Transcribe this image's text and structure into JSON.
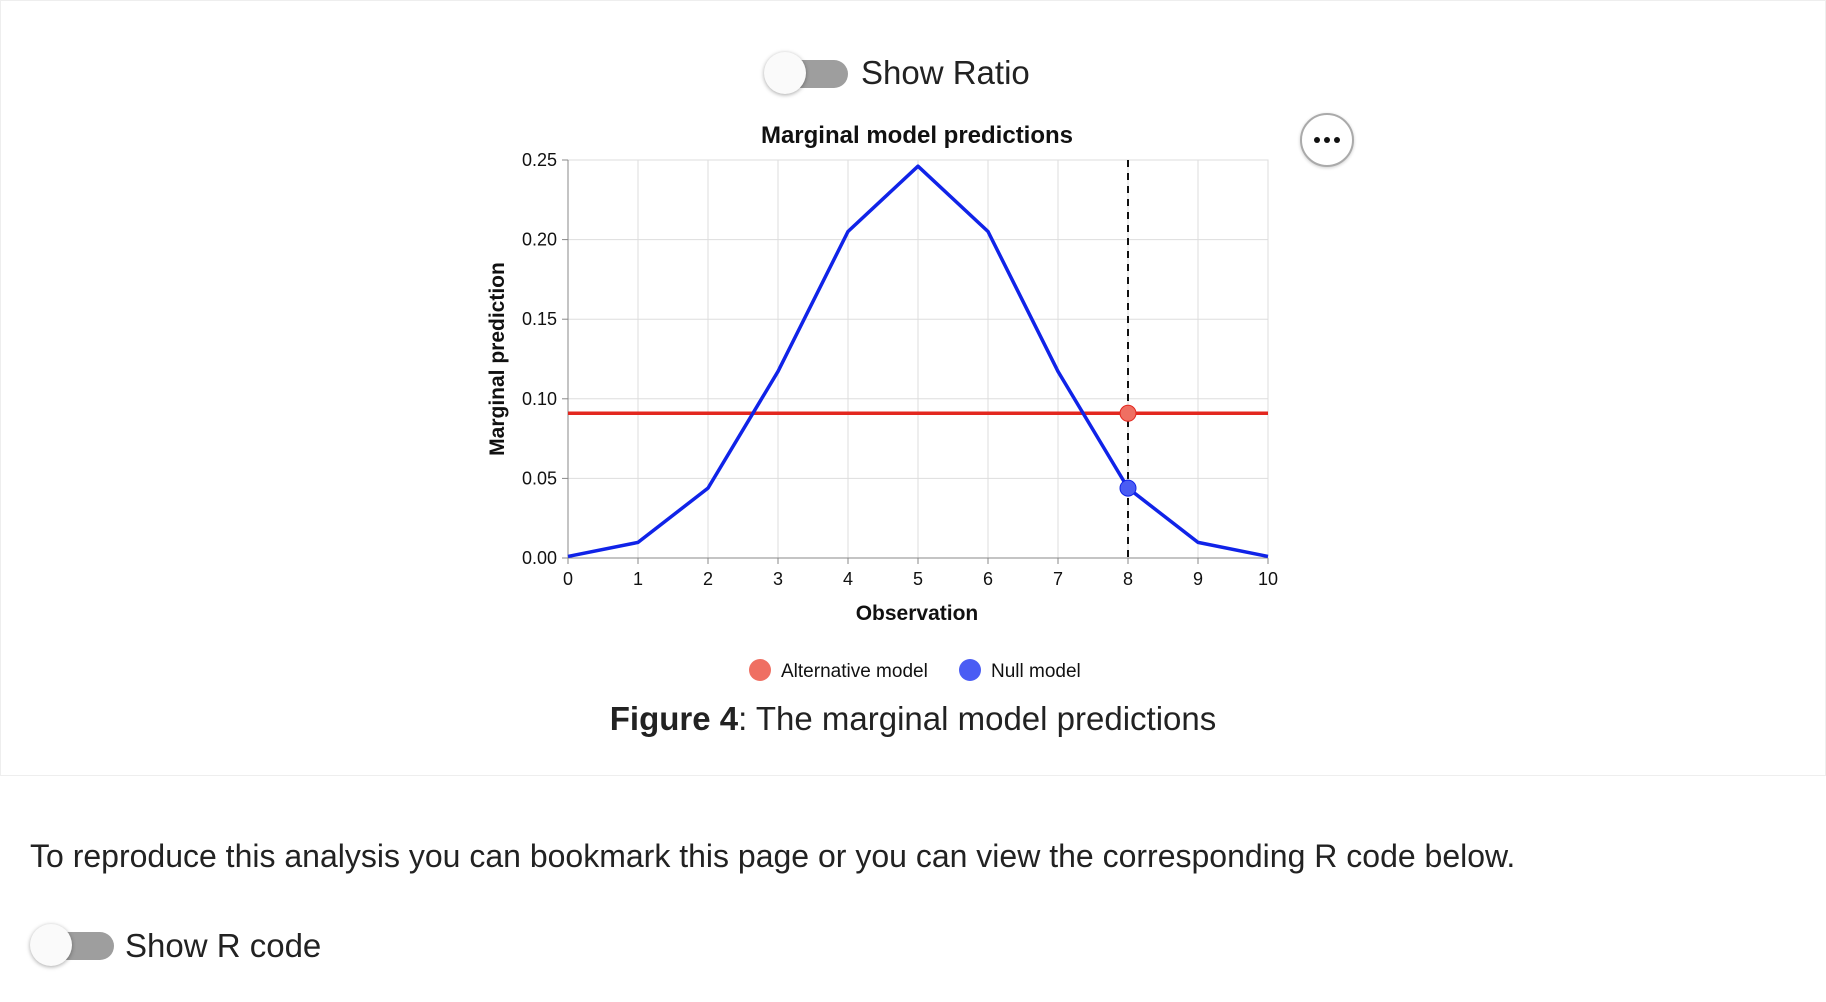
{
  "toggles": {
    "show_ratio_label": "Show Ratio",
    "show_r_code_label": "Show R code"
  },
  "chart_data": {
    "type": "line",
    "title": "Marginal model predictions",
    "xlabel": "Observation",
    "ylabel": "Marginal prediction",
    "xlim": [
      0,
      10
    ],
    "ylim": [
      0,
      0.25
    ],
    "x_ticks": [
      "0",
      "1",
      "2",
      "3",
      "4",
      "5",
      "6",
      "7",
      "8",
      "9",
      "10"
    ],
    "y_ticks": [
      "0.00",
      "0.05",
      "0.10",
      "0.15",
      "0.20",
      "0.25"
    ],
    "grid": true,
    "legend_position": "bottom",
    "series": [
      {
        "name": "Alternative model",
        "color": "#e3271f",
        "legend_color": "#ef6f62",
        "x": [
          0,
          1,
          2,
          3,
          4,
          5,
          6,
          7,
          8,
          9,
          10
        ],
        "values": [
          0.0909,
          0.0909,
          0.0909,
          0.0909,
          0.0909,
          0.0909,
          0.0909,
          0.0909,
          0.0909,
          0.0909,
          0.0909
        ]
      },
      {
        "name": "Null model",
        "color": "#1023e8",
        "legend_color": "#4a5cf4",
        "x": [
          0,
          1,
          2,
          3,
          4,
          5,
          6,
          7,
          8,
          9,
          10
        ],
        "values": [
          0.001,
          0.0098,
          0.0439,
          0.1172,
          0.2051,
          0.2461,
          0.2051,
          0.1172,
          0.0439,
          0.0098,
          0.001
        ]
      }
    ],
    "reference_line_x": 8,
    "highlight_points": [
      {
        "series": "Alternative model",
        "x": 8,
        "y": 0.0909
      },
      {
        "series": "Null model",
        "x": 8,
        "y": 0.0439
      }
    ]
  },
  "caption": {
    "label": "Figure 4",
    "text": ": The marginal model predictions"
  },
  "paragraph": "To reproduce this analysis you can bookmark this page or you can view the corresponding R code below."
}
